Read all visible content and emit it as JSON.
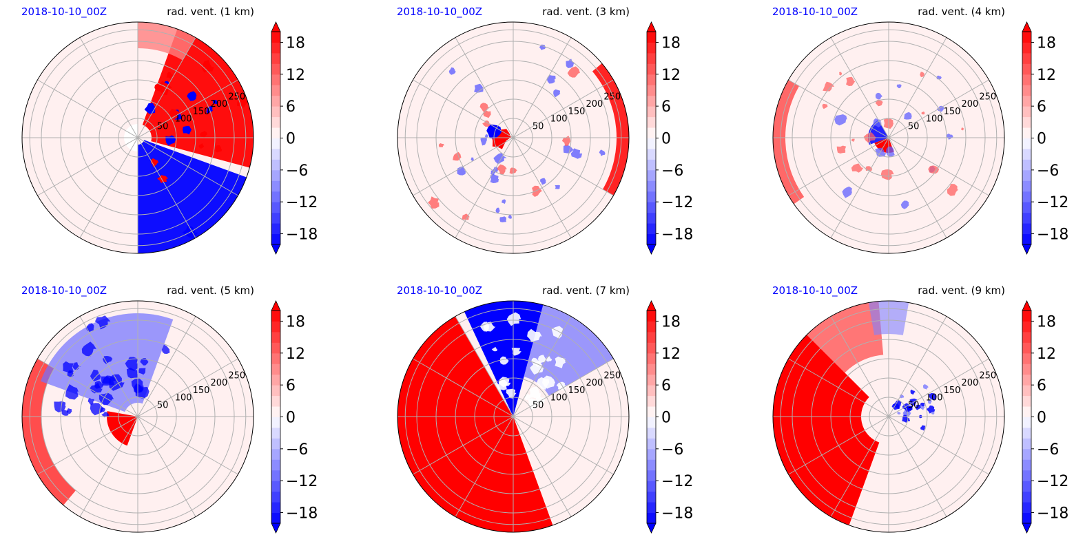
{
  "colormap": {
    "name": "bwr",
    "negative_color": "#0000ff",
    "zero_color": "#ffffff",
    "positive_color": "#ff0000"
  },
  "chart_data": [
    {
      "type": "polar-contourf",
      "date": "2018-10-10_00Z",
      "title": "rad. vent. (1 km)",
      "radial_ticks": [
        "50",
        "100",
        "150",
        "200",
        "250"
      ],
      "rmax": 300,
      "angular_gridlines_deg": 30,
      "colorbar": {
        "ticks": [
          "18",
          "12",
          "6",
          "0",
          "−6",
          "−12",
          "−18"
        ],
        "range": [
          -20,
          20
        ],
        "extend": "both"
      }
    },
    {
      "type": "polar-contourf",
      "date": "2018-10-10_00Z",
      "title": "rad. vent. (3 km)",
      "radial_ticks": [
        "50",
        "100",
        "150",
        "200",
        "250"
      ],
      "rmax": 300,
      "angular_gridlines_deg": 30,
      "colorbar": {
        "ticks": [
          "18",
          "12",
          "6",
          "0",
          "−6",
          "−12",
          "−18"
        ],
        "range": [
          -20,
          20
        ],
        "extend": "both"
      }
    },
    {
      "type": "polar-contourf",
      "date": "2018-10-10_00Z",
      "title": "rad. vent. (4 km)",
      "radial_ticks": [
        "50",
        "100",
        "150",
        "200",
        "250"
      ],
      "rmax": 300,
      "angular_gridlines_deg": 30,
      "colorbar": {
        "ticks": [
          "18",
          "12",
          "6",
          "0",
          "−6",
          "−12",
          "−18"
        ],
        "range": [
          -20,
          20
        ],
        "extend": "both"
      }
    },
    {
      "type": "polar-contourf",
      "date": "2018-10-10_00Z",
      "title": "rad. vent. (5 km)",
      "radial_ticks": [
        "50",
        "100",
        "150",
        "200",
        "250"
      ],
      "rmax": 300,
      "angular_gridlines_deg": 30,
      "colorbar": {
        "ticks": [
          "18",
          "12",
          "6",
          "0",
          "−6",
          "−12",
          "−18"
        ],
        "range": [
          -20,
          20
        ],
        "extend": "both"
      }
    },
    {
      "type": "polar-contourf",
      "date": "2018-10-10_00Z",
      "title": "rad. vent. (7 km)",
      "radial_ticks": [
        "50",
        "100",
        "150",
        "200",
        "250"
      ],
      "rmax": 300,
      "angular_gridlines_deg": 30,
      "colorbar": {
        "ticks": [
          "18",
          "12",
          "6",
          "0",
          "−6",
          "−12",
          "−18"
        ],
        "range": [
          -20,
          20
        ],
        "extend": "both"
      }
    },
    {
      "type": "polar-contourf",
      "date": "2018-10-10_00Z",
      "title": "rad. vent. (9 km)",
      "radial_ticks": [
        "50",
        "100",
        "150",
        "200",
        "250"
      ],
      "rmax": 300,
      "angular_gridlines_deg": 30,
      "colorbar": {
        "ticks": [
          "18",
          "12",
          "6",
          "0",
          "−6",
          "−12",
          "−18"
        ],
        "range": [
          -20,
          20
        ],
        "extend": "both"
      }
    }
  ]
}
